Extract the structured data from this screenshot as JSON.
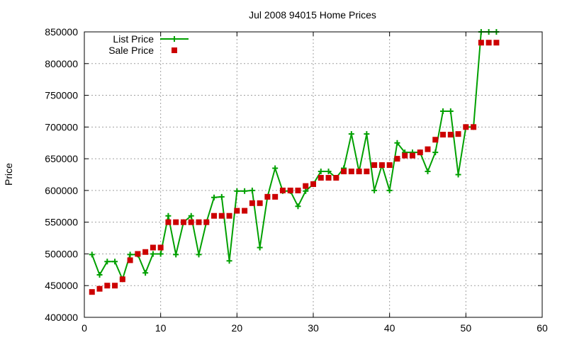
{
  "chart_data": {
    "type": "line",
    "title": "Jul 2008 94015 Home Prices",
    "xlabel": "",
    "ylabel": "Price",
    "xlim": [
      0,
      60
    ],
    "ylim": [
      400000,
      850000
    ],
    "xticks": [
      0,
      10,
      20,
      30,
      40,
      50,
      60
    ],
    "yticks": [
      400000,
      450000,
      500000,
      550000,
      600000,
      650000,
      700000,
      750000,
      800000,
      850000
    ],
    "grid": true,
    "legend_position": "top-left",
    "x": [
      1,
      2,
      3,
      4,
      5,
      6,
      7,
      8,
      9,
      10,
      11,
      12,
      13,
      14,
      15,
      16,
      17,
      18,
      19,
      20,
      21,
      22,
      23,
      24,
      25,
      26,
      27,
      28,
      29,
      30,
      31,
      32,
      33,
      34,
      35,
      36,
      37,
      38,
      39,
      40,
      41,
      42,
      43,
      44,
      45,
      46,
      47,
      48,
      49,
      50,
      51,
      52,
      53,
      54
    ],
    "series": [
      {
        "name": "List Price",
        "style": "line-with-plus-markers",
        "color": "#00a000",
        "values": [
          499000,
          467000,
          488000,
          488000,
          460000,
          499000,
          499000,
          470000,
          500000,
          500000,
          560000,
          499000,
          550000,
          560000,
          499000,
          550000,
          589000,
          590000,
          489000,
          599000,
          599000,
          600000,
          510000,
          590000,
          635000,
          599000,
          599000,
          575000,
          599000,
          610000,
          630000,
          630000,
          620000,
          635000,
          689000,
          630000,
          689000,
          600000,
          640000,
          600000,
          675000,
          660000,
          660000,
          660000,
          630000,
          660000,
          725000,
          725000,
          625000,
          700000,
          700000,
          850000,
          850000,
          850000
        ]
      },
      {
        "name": "Sale Price",
        "style": "square-markers",
        "color": "#cc0000",
        "values": [
          440000,
          445000,
          450000,
          450000,
          460000,
          490000,
          500000,
          503000,
          510000,
          510000,
          550000,
          550000,
          550000,
          550000,
          550000,
          550000,
          560000,
          560000,
          560000,
          568000,
          568000,
          580000,
          580000,
          590000,
          590000,
          600000,
          600000,
          600000,
          607000,
          610000,
          620000,
          620000,
          620000,
          630000,
          630000,
          630000,
          630000,
          640000,
          640000,
          640000,
          650000,
          655000,
          655000,
          660000,
          665000,
          680000,
          688000,
          688000,
          689000,
          700000,
          700000,
          833000,
          833000,
          833000
        ]
      }
    ]
  }
}
